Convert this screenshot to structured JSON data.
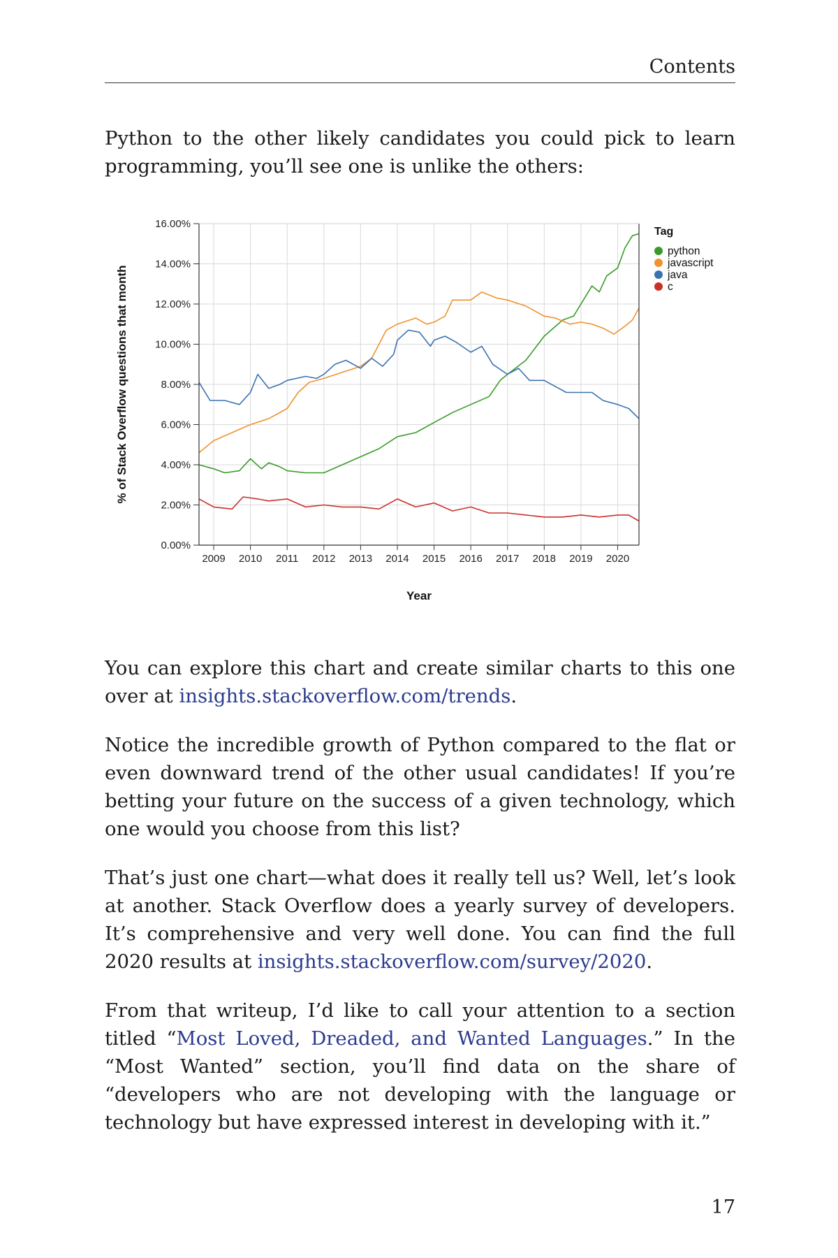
{
  "header": {
    "title": "Contents"
  },
  "intro_paragraph": "Python to the other likely candidates you could pick to learn programming, you’ll see one is unlike the others:",
  "chart_data": {
    "type": "line",
    "title": "",
    "xlabel": "Year",
    "ylabel": "% of Stack Overflow questions that month",
    "x_ticks": [
      "2009",
      "2010",
      "2011",
      "2012",
      "2013",
      "2014",
      "2015",
      "2016",
      "2017",
      "2018",
      "2019",
      "2020"
    ],
    "y_ticks": [
      "0.00%",
      "2.00%",
      "4.00%",
      "6.00%",
      "8.00%",
      "10.00%",
      "12.00%",
      "14.00%",
      "16.00%"
    ],
    "xlim": [
      2008.6,
      2020.58
    ],
    "ylim": [
      0,
      16
    ],
    "grid": true,
    "legend_title": "Tag",
    "legend_position": "top-right",
    "series": [
      {
        "name": "python",
        "color": "#3a9a2b",
        "points": [
          [
            2008.6,
            4.0
          ],
          [
            2009.0,
            3.8
          ],
          [
            2009.3,
            3.6
          ],
          [
            2009.7,
            3.7
          ],
          [
            2010.0,
            4.3
          ],
          [
            2010.3,
            3.8
          ],
          [
            2010.5,
            4.1
          ],
          [
            2010.8,
            3.9
          ],
          [
            2011.0,
            3.7
          ],
          [
            2011.5,
            3.6
          ],
          [
            2012.0,
            3.6
          ],
          [
            2012.5,
            4.0
          ],
          [
            2013.0,
            4.4
          ],
          [
            2013.5,
            4.8
          ],
          [
            2014.0,
            5.4
          ],
          [
            2014.5,
            5.6
          ],
          [
            2015.0,
            6.1
          ],
          [
            2015.5,
            6.6
          ],
          [
            2016.0,
            7.0
          ],
          [
            2016.5,
            7.4
          ],
          [
            2016.8,
            8.2
          ],
          [
            2017.0,
            8.5
          ],
          [
            2017.5,
            9.2
          ],
          [
            2018.0,
            10.4
          ],
          [
            2018.5,
            11.2
          ],
          [
            2018.8,
            11.4
          ],
          [
            2019.0,
            12.0
          ],
          [
            2019.3,
            12.9
          ],
          [
            2019.5,
            12.6
          ],
          [
            2019.7,
            13.4
          ],
          [
            2020.0,
            13.8
          ],
          [
            2020.2,
            14.8
          ],
          [
            2020.4,
            15.4
          ],
          [
            2020.58,
            15.5
          ]
        ]
      },
      {
        "name": "javascript",
        "color": "#f0922d",
        "points": [
          [
            2008.6,
            4.6
          ],
          [
            2009.0,
            5.2
          ],
          [
            2009.5,
            5.6
          ],
          [
            2010.0,
            6.0
          ],
          [
            2010.5,
            6.3
          ],
          [
            2011.0,
            6.8
          ],
          [
            2011.3,
            7.6
          ],
          [
            2011.6,
            8.1
          ],
          [
            2012.0,
            8.3
          ],
          [
            2012.5,
            8.6
          ],
          [
            2013.0,
            8.9
          ],
          [
            2013.3,
            9.3
          ],
          [
            2013.7,
            10.7
          ],
          [
            2014.0,
            11.0
          ],
          [
            2014.5,
            11.3
          ],
          [
            2014.8,
            11.0
          ],
          [
            2015.0,
            11.1
          ],
          [
            2015.3,
            11.4
          ],
          [
            2015.5,
            12.2
          ],
          [
            2016.0,
            12.2
          ],
          [
            2016.3,
            12.6
          ],
          [
            2016.7,
            12.3
          ],
          [
            2017.0,
            12.2
          ],
          [
            2017.5,
            11.9
          ],
          [
            2018.0,
            11.4
          ],
          [
            2018.3,
            11.3
          ],
          [
            2018.7,
            11.0
          ],
          [
            2019.0,
            11.1
          ],
          [
            2019.3,
            11.0
          ],
          [
            2019.6,
            10.8
          ],
          [
            2019.9,
            10.5
          ],
          [
            2020.2,
            10.9
          ],
          [
            2020.4,
            11.2
          ],
          [
            2020.58,
            11.8
          ]
        ]
      },
      {
        "name": "java",
        "color": "#3b72b0",
        "points": [
          [
            2008.6,
            8.1
          ],
          [
            2008.9,
            7.2
          ],
          [
            2009.3,
            7.2
          ],
          [
            2009.7,
            7.0
          ],
          [
            2010.0,
            7.6
          ],
          [
            2010.2,
            8.5
          ],
          [
            2010.5,
            7.8
          ],
          [
            2010.8,
            8.0
          ],
          [
            2011.0,
            8.2
          ],
          [
            2011.5,
            8.4
          ],
          [
            2011.8,
            8.3
          ],
          [
            2012.0,
            8.5
          ],
          [
            2012.3,
            9.0
          ],
          [
            2012.6,
            9.2
          ],
          [
            2013.0,
            8.8
          ],
          [
            2013.3,
            9.3
          ],
          [
            2013.6,
            8.9
          ],
          [
            2013.9,
            9.5
          ],
          [
            2014.0,
            10.2
          ],
          [
            2014.3,
            10.7
          ],
          [
            2014.6,
            10.6
          ],
          [
            2014.9,
            9.9
          ],
          [
            2015.0,
            10.2
          ],
          [
            2015.3,
            10.4
          ],
          [
            2015.6,
            10.1
          ],
          [
            2016.0,
            9.6
          ],
          [
            2016.3,
            9.9
          ],
          [
            2016.6,
            9.0
          ],
          [
            2017.0,
            8.5
          ],
          [
            2017.3,
            8.8
          ],
          [
            2017.6,
            8.2
          ],
          [
            2018.0,
            8.2
          ],
          [
            2018.3,
            7.9
          ],
          [
            2018.6,
            7.6
          ],
          [
            2019.0,
            7.6
          ],
          [
            2019.3,
            7.6
          ],
          [
            2019.6,
            7.2
          ],
          [
            2020.0,
            7.0
          ],
          [
            2020.3,
            6.8
          ],
          [
            2020.58,
            6.3
          ]
        ]
      },
      {
        "name": "c",
        "color": "#c9302c",
        "points": [
          [
            2008.6,
            2.3
          ],
          [
            2009.0,
            1.9
          ],
          [
            2009.5,
            1.8
          ],
          [
            2009.8,
            2.4
          ],
          [
            2010.2,
            2.3
          ],
          [
            2010.5,
            2.2
          ],
          [
            2011.0,
            2.3
          ],
          [
            2011.5,
            1.9
          ],
          [
            2012.0,
            2.0
          ],
          [
            2012.5,
            1.9
          ],
          [
            2013.0,
            1.9
          ],
          [
            2013.5,
            1.8
          ],
          [
            2014.0,
            2.3
          ],
          [
            2014.5,
            1.9
          ],
          [
            2015.0,
            2.1
          ],
          [
            2015.5,
            1.7
          ],
          [
            2016.0,
            1.9
          ],
          [
            2016.5,
            1.6
          ],
          [
            2017.0,
            1.6
          ],
          [
            2017.5,
            1.5
          ],
          [
            2018.0,
            1.4
          ],
          [
            2018.5,
            1.4
          ],
          [
            2019.0,
            1.5
          ],
          [
            2019.5,
            1.4
          ],
          [
            2020.0,
            1.5
          ],
          [
            2020.3,
            1.5
          ],
          [
            2020.58,
            1.2
          ]
        ]
      }
    ]
  },
  "paragraphs": {
    "p1": {
      "text": "You can explore this chart and create similar charts to this one over at ",
      "link": "insights.stackoverflow.com/trends",
      "after": "."
    },
    "p2": {
      "text": "Notice the incredible growth of Python compared to the flat or even downward trend of the other usual candidates! If you’re betting your future on the success of a given technology, which one would you choose from this list?"
    },
    "p3": {
      "text": "That’s just one chart—what does it really tell us? Well, let’s look at another. Stack Overflow does a yearly survey of developers. It’s comprehensive and very well done. You can find the full 2020 results at ",
      "link": "insights.stackoverflow.com/survey/2020",
      "after": "."
    },
    "p4": {
      "before": "From that writeup, I’d like to call your attention to a section titled “",
      "link": "Most Loved, Dreaded, and Wanted Languages",
      "after": ".” In the “Most Wanted” section, you’ll find data on the share of “developers who are not developing with the language or technology but have expressed interest in developing with it.”"
    }
  },
  "page_number": "17"
}
